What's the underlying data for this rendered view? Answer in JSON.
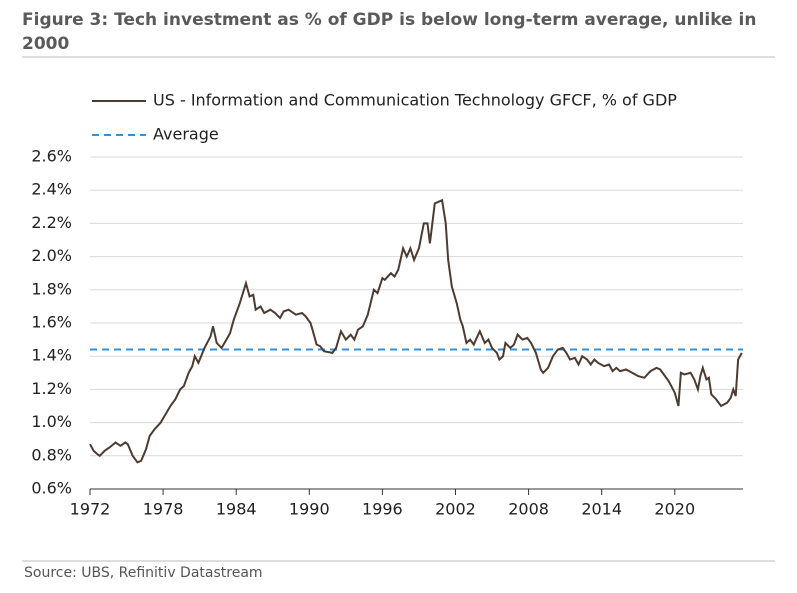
{
  "chart_data": {
    "type": "line",
    "title": "Figure 3: Tech investment as % of GDP is below long-term average, unlike in 2000",
    "source": "Source: UBS, Refinitiv Datastream",
    "x": [
      1972.0,
      1972.3,
      1972.6,
      1972.8,
      1973.2,
      1973.6,
      1974.1,
      1974.5,
      1974.9,
      1975.1,
      1975.5,
      1975.9,
      1976.2,
      1976.6,
      1976.9,
      1977.3,
      1977.8,
      1978.2,
      1978.6,
      1979.0,
      1979.4,
      1979.7,
      1980.1,
      1980.4,
      1980.6,
      1980.9,
      1981.4,
      1981.9,
      1982.1,
      1982.4,
      1982.8,
      1983.2,
      1983.5,
      1983.8,
      1984.3,
      1984.8,
      1985.1,
      1985.4,
      1985.6,
      1986.0,
      1986.3,
      1986.8,
      1987.2,
      1987.6,
      1987.9,
      1988.3,
      1988.9,
      1989.4,
      1989.7,
      1990.1,
      1990.3,
      1990.6,
      1990.9,
      1991.2,
      1991.9,
      1992.2,
      1992.6,
      1993.0,
      1993.4,
      1993.7,
      1994.0,
      1994.4,
      1994.8,
      1995.3,
      1995.6,
      1996.0,
      1996.2,
      1996.7,
      1997.0,
      1997.3,
      1997.7,
      1998.0,
      1998.3,
      1998.6,
      1999.0,
      1999.4,
      1999.7,
      1999.9,
      2000.3,
      2000.9,
      2001.2,
      2001.4,
      2001.7,
      2002.1,
      2002.4,
      2002.6,
      2002.9,
      2003.2,
      2003.5,
      2003.8,
      2004.0,
      2004.4,
      2004.7,
      2005.0,
      2005.4,
      2005.6,
      2005.9,
      2006.1,
      2006.5,
      2006.8,
      2007.1,
      2007.5,
      2007.9,
      2008.2,
      2008.6,
      2009.0,
      2009.2,
      2009.6,
      2010.0,
      2010.4,
      2010.8,
      2011.1,
      2011.4,
      2011.8,
      2012.1,
      2012.4,
      2012.8,
      2013.1,
      2013.4,
      2013.7,
      2014.2,
      2014.6,
      2014.9,
      2015.2,
      2015.5,
      2016.0,
      2016.5,
      2017.0,
      2017.5,
      2018.0,
      2018.5,
      2018.8,
      2019.2,
      2019.5,
      2020.0,
      2020.3,
      2020.5,
      2020.8,
      2021.3,
      2021.6,
      2021.9,
      2022.1,
      2022.3,
      2022.6,
      2022.8,
      2023.0,
      2023.4,
      2023.8,
      2024.3,
      2024.6,
      2024.8,
      2025.0,
      2025.2,
      2025.5
    ],
    "series": [
      {
        "name": "US - Information and Communication Technology GFCF, % of GDP",
        "color": "#4e3b30",
        "values": [
          0.87,
          0.83,
          0.81,
          0.8,
          0.83,
          0.85,
          0.88,
          0.86,
          0.88,
          0.87,
          0.8,
          0.76,
          0.77,
          0.84,
          0.92,
          0.96,
          1.0,
          1.05,
          1.1,
          1.14,
          1.2,
          1.22,
          1.3,
          1.34,
          1.4,
          1.36,
          1.45,
          1.52,
          1.58,
          1.48,
          1.45,
          1.5,
          1.54,
          1.62,
          1.72,
          1.84,
          1.76,
          1.77,
          1.68,
          1.7,
          1.66,
          1.68,
          1.66,
          1.63,
          1.67,
          1.68,
          1.65,
          1.66,
          1.64,
          1.6,
          1.55,
          1.47,
          1.46,
          1.43,
          1.42,
          1.45,
          1.55,
          1.5,
          1.53,
          1.5,
          1.56,
          1.58,
          1.65,
          1.8,
          1.78,
          1.87,
          1.86,
          1.9,
          1.88,
          1.92,
          2.05,
          2.0,
          2.05,
          1.98,
          2.05,
          2.2,
          2.2,
          2.08,
          2.32,
          2.34,
          2.2,
          1.98,
          1.82,
          1.72,
          1.62,
          1.58,
          1.48,
          1.5,
          1.47,
          1.52,
          1.55,
          1.48,
          1.5,
          1.45,
          1.42,
          1.38,
          1.4,
          1.48,
          1.45,
          1.47,
          1.53,
          1.5,
          1.51,
          1.48,
          1.42,
          1.32,
          1.3,
          1.33,
          1.4,
          1.44,
          1.45,
          1.42,
          1.38,
          1.39,
          1.35,
          1.4,
          1.38,
          1.35,
          1.38,
          1.36,
          1.34,
          1.35,
          1.31,
          1.33,
          1.31,
          1.32,
          1.3,
          1.28,
          1.27,
          1.31,
          1.33,
          1.32,
          1.28,
          1.25,
          1.18,
          1.1,
          1.3,
          1.29,
          1.3,
          1.26,
          1.2,
          1.28,
          1.33,
          1.26,
          1.27,
          1.17,
          1.14,
          1.1,
          1.12,
          1.15,
          1.2,
          1.16,
          1.38,
          1.42
        ]
      }
    ],
    "reference_line": {
      "name": "Average",
      "value": 1.44,
      "color": "#3a8fd0"
    },
    "xlim": [
      1972,
      2025.6
    ],
    "xticks": [
      1972,
      1978,
      1984,
      1990,
      1996,
      2002,
      2008,
      2014,
      2020
    ],
    "ylim": [
      0.6,
      2.6
    ],
    "yticks": [
      {
        "value": 0.6,
        "label": "0.6%"
      },
      {
        "value": 0.8,
        "label": "0.8%"
      },
      {
        "value": 1.0,
        "label": "1.0%"
      },
      {
        "value": 1.2,
        "label": "1.2%"
      },
      {
        "value": 1.4,
        "label": "1.4%"
      },
      {
        "value": 1.6,
        "label": "1.6%"
      },
      {
        "value": 1.8,
        "label": "1.8%"
      },
      {
        "value": 2.0,
        "label": "2.0%"
      },
      {
        "value": 2.2,
        "label": "2.2%"
      },
      {
        "value": 2.4,
        "label": "2.4%"
      },
      {
        "value": 2.6,
        "label": "2.6%"
      }
    ],
    "grid": true
  }
}
